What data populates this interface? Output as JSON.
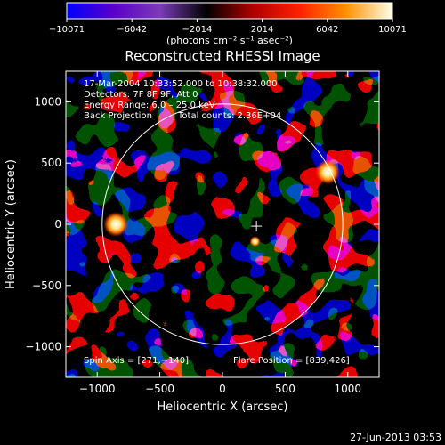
{
  "colorbar": {
    "tick_labels": [
      "−10071",
      "−6042",
      "−2014",
      "2014",
      "6042",
      "10071"
    ],
    "tick_values": [
      -10071,
      -6042,
      -2014,
      2014,
      6042,
      10071
    ],
    "range": [
      -10071,
      10071
    ],
    "unit_label": "(photons cm⁻² s⁻¹ asec⁻²)",
    "gradient_colors": [
      "#0000ff",
      "#5a00c8",
      "#7a3cb8",
      "#000000",
      "#b00000",
      "#ff2000",
      "#ff9000",
      "#ffffe8"
    ]
  },
  "chart_data": {
    "type": "heatmap",
    "title": "Reconstructed RHESSI Image",
    "xlabel": "Heliocentric X (arcsec)",
    "ylabel": "Heliocentric Y (arcsec)",
    "xlim": [
      -1250,
      1250
    ],
    "ylim": [
      -1250,
      1250
    ],
    "xticks": [
      -1000,
      -500,
      0,
      500,
      1000
    ],
    "yticks": [
      -1000,
      -500,
      0,
      500,
      1000
    ],
    "xtick_labels": [
      "−1000",
      "−500",
      "0",
      "500",
      "1000"
    ],
    "ytick_labels": [
      "−1000",
      "−500",
      "0",
      "500",
      "1000"
    ],
    "solar_limb_radius_arcsec": 960,
    "sources": [
      {
        "x": 839,
        "y": 426
      },
      {
        "x": -850,
        "y": 0
      },
      {
        "x": 260,
        "y": -140
      }
    ],
    "spin_axis": [
      271,
      -140
    ],
    "annotations": {
      "time_range": "17-Mar-2004 10:33:52.000 to 10:38:32.000",
      "detectors": "Detectors: 7F 8F 9F, Att 0",
      "energy_range": "Energy Range: 6.0 – 25.0 keV",
      "algorithm": "Back Projection",
      "total_counts": "Total counts: 2.36E+04",
      "spin_axis_text": "Spin Axis = [271,−140]",
      "flare_position_text": "Flare Position = [839,426]"
    }
  },
  "footer": {
    "timestamp": "27-Jun-2013 03:53"
  }
}
